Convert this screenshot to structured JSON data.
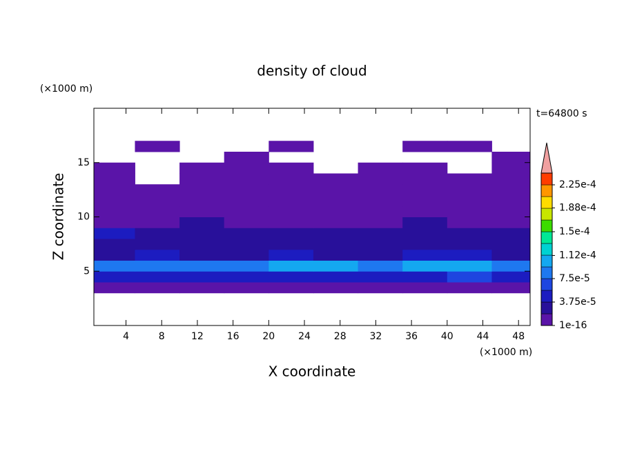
{
  "chart_data": {
    "type": "contour",
    "title": "density of cloud",
    "x_label": "X coordinate",
    "y_label": "Z coordinate",
    "x_unit": "(×1000 m)",
    "y_unit": "(×1000 m)",
    "annotation": "t=64800 s",
    "xlim": [
      0.4,
      49.3
    ],
    "ylim": [
      0,
      20
    ],
    "xticks": [
      4,
      8,
      12,
      16,
      20,
      24,
      28,
      32,
      36,
      40,
      44,
      48
    ],
    "yticks": [
      5,
      10,
      15
    ],
    "x": [
      2.5,
      7.5,
      12.5,
      17.5,
      22.5,
      27.5,
      32.5,
      37.5,
      42.5,
      47.5
    ],
    "y": [
      3.5,
      4.5,
      5.5,
      6.5,
      7.5,
      8.5,
      9.5,
      10.5,
      11.5,
      12.5,
      13.5,
      14.5,
      15.5,
      16.5
    ],
    "z": [
      [
        1.5e-05,
        1.5e-05,
        1.5e-05,
        1.5e-05,
        1.5e-05,
        1.5e-05,
        1.5e-05,
        1.5e-05,
        1.5e-05,
        1.5e-05
      ],
      [
        4.5e-05,
        5e-05,
        4e-05,
        5.5e-05,
        5e-05,
        4.5e-05,
        5e-05,
        4.5e-05,
        6e-05,
        5e-05
      ],
      [
        8e-05,
        9e-05,
        8.5e-05,
        9e-05,
        0.0001,
        9.5e-05,
        8e-05,
        0.000105,
        0.00011,
        9e-05
      ],
      [
        3.5e-05,
        4e-05,
        3e-05,
        3.5e-05,
        4e-05,
        3e-05,
        3.5e-05,
        5e-05,
        4e-05,
        3.5e-05
      ],
      [
        2.5e-05,
        2e-05,
        2.5e-05,
        2.2e-05,
        2.8e-05,
        2.4e-05,
        2e-05,
        3e-05,
        2.5e-05,
        2.2e-05
      ],
      [
        4e-05,
        2e-05,
        2.2e-05,
        2e-05,
        1.9e-05,
        2.2e-05,
        2e-05,
        2.4e-05,
        2e-05,
        2.5e-05
      ],
      [
        1.5e-05,
        1.6e-05,
        2e-05,
        1.5e-05,
        1.4e-05,
        1.6e-05,
        1.5e-05,
        1.9e-05,
        1.6e-05,
        1.5e-05
      ],
      [
        1e-05,
        1.2e-05,
        1e-05,
        1.1e-05,
        1e-05,
        1.2e-05,
        1e-05,
        1.1e-05,
        1e-05,
        1e-05
      ],
      [
        8e-06,
        7e-06,
        8e-06,
        7e-06,
        8e-06,
        9e-06,
        7e-06,
        8e-06,
        7e-06,
        8e-06
      ],
      [
        5e-06,
        5e-06,
        4e-06,
        5e-06,
        5e-06,
        5e-06,
        5e-06,
        4e-06,
        5e-06,
        5e-06
      ],
      [
        3e-06,
        null,
        3e-06,
        3e-06,
        3e-06,
        3e-06,
        3e-06,
        3e-06,
        3e-06,
        3e-06
      ],
      [
        2e-06,
        null,
        2e-06,
        2e-06,
        2e-06,
        null,
        2e-06,
        2e-06,
        null,
        2e-06
      ],
      [
        null,
        null,
        null,
        1e-06,
        null,
        null,
        null,
        null,
        null,
        1e-06
      ],
      [
        null,
        1e-06,
        null,
        null,
        1e-06,
        null,
        null,
        1e-06,
        1e-06,
        null
      ]
    ],
    "levels": [
      1e-16,
      1.875e-05,
      3.75e-05,
      5.625e-05,
      7.5e-05,
      9.375e-05,
      0.0001125,
      0.00013125,
      0.00015,
      0.00016875,
      0.0001875,
      0.00020625,
      0.000225,
      0.00024375
    ],
    "colors": [
      "#5a14a8",
      "#28109a",
      "#1c1cc0",
      "#1e46e0",
      "#1e78f0",
      "#14a8f0",
      "#00d2d2",
      "#00e896",
      "#3cdc00",
      "#c8e600",
      "#ffdc00",
      "#ff9600",
      "#ff3c00"
    ],
    "extend_color": "#f0a0a0",
    "cticks": [
      {
        "value": 1e-16,
        "label": "1e-16"
      },
      {
        "value": 3.75e-05,
        "label": "3.75e-5"
      },
      {
        "value": 7.5e-05,
        "label": "7.5e-5"
      },
      {
        "value": 0.000112,
        "label": "1.12e-4"
      },
      {
        "value": 0.00015,
        "label": "1.5e-4"
      },
      {
        "value": 0.000188,
        "label": "1.88e-4"
      },
      {
        "value": 0.000225,
        "label": "2.25e-4"
      }
    ]
  }
}
